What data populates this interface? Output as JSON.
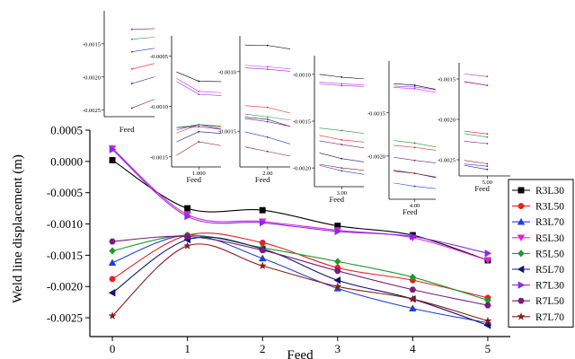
{
  "chart_data": {
    "type": "line",
    "xlabel": "Feed",
    "ylabel": "Weld line displacement (m)",
    "x": [
      0,
      1,
      2,
      3,
      4,
      5
    ],
    "xlim": [
      -0.3,
      5.3
    ],
    "ylim": [
      -0.0028,
      0.0005
    ],
    "x_ticks": [
      "0",
      "1",
      "2",
      "3",
      "4",
      "5"
    ],
    "y_ticks": [
      "0.0005",
      "0.0000",
      "-0.0005",
      "-0.0010",
      "-0.0015",
      "-0.0020",
      "-0.0025"
    ],
    "legend_position": "right",
    "series": [
      {
        "name": "R3L30",
        "color": "#000000",
        "marker": "square",
        "values": [
          2e-05,
          -0.00075,
          -0.00078,
          -0.00103,
          -0.00118,
          -0.00158
        ]
      },
      {
        "name": "R3L50",
        "color": "#e8201e",
        "marker": "circle",
        "values": [
          -0.00188,
          -0.00118,
          -0.0013,
          -0.0017,
          -0.0019,
          -0.00218
        ]
      },
      {
        "name": "R3L70",
        "color": "#1f3fd8",
        "marker": "triangle",
        "values": [
          -0.00162,
          -0.00118,
          -0.00155,
          -0.00203,
          -0.00235,
          -0.00258
        ]
      },
      {
        "name": "R5L30",
        "color": "#e020e0",
        "marker": "triangle-down",
        "values": [
          0.00021,
          -0.00085,
          -0.00096,
          -0.0011,
          -0.00122,
          -0.00158
        ]
      },
      {
        "name": "R5L50",
        "color": "#1e9a2a",
        "marker": "diamond",
        "values": [
          -0.00143,
          -0.00118,
          -0.00138,
          -0.0016,
          -0.00185,
          -0.00222
        ]
      },
      {
        "name": "R5L70",
        "color": "#14146e",
        "marker": "triangle-left",
        "values": [
          -0.0021,
          -0.00125,
          -0.0014,
          -0.0019,
          -0.0022,
          -0.00262
        ]
      },
      {
        "name": "R7L30",
        "color": "#8a2be2",
        "marker": "triangle-right",
        "values": [
          0.00019,
          -0.00088,
          -0.00098,
          -0.00112,
          -0.0012,
          -0.00147
        ]
      },
      {
        "name": "R7L50",
        "color": "#7a1a7a",
        "marker": "hexagon",
        "values": [
          -0.00128,
          -0.0012,
          -0.00142,
          -0.00175,
          -0.00205,
          -0.0023
        ]
      },
      {
        "name": "R7L70",
        "color": "#8b1a1a",
        "marker": "star",
        "values": [
          -0.00247,
          -0.00135,
          -0.00167,
          -0.002,
          -0.0022,
          -0.00255
        ]
      }
    ],
    "insets": [
      {
        "feed": 0,
        "ylim": [
          -0.0026,
          -0.001
        ],
        "y_ticks": [
          "-0.0015",
          "-0.0020",
          "-0.0025"
        ],
        "x_tick": "",
        "xlabel": "Feed"
      },
      {
        "feed": 1,
        "ylim": [
          -0.0016,
          -0.0003
        ],
        "y_ticks": [
          "-0.0005",
          "-0.0010",
          "-0.0015"
        ],
        "x_tick": "1.000",
        "xlabel": "Feed"
      },
      {
        "feed": 2,
        "ylim": [
          -0.0018,
          -0.0007
        ],
        "y_ticks": [
          "-0.0010",
          "-0.0015"
        ],
        "x_tick": "2.00",
        "xlabel": "Feed"
      },
      {
        "feed": 3,
        "ylim": [
          -0.0022,
          -0.0008
        ],
        "y_ticks": [
          "-0.0010",
          "-0.0015",
          "-0.0020"
        ],
        "x_tick": "3.00",
        "xlabel": "Feed"
      },
      {
        "feed": 4,
        "ylim": [
          -0.0025,
          -0.0009
        ],
        "y_ticks": [
          "-0.0015",
          "-0.0020"
        ],
        "x_tick": "4.00",
        "xlabel": "Feed"
      },
      {
        "feed": 5,
        "ylim": [
          -0.0027,
          -0.0013
        ],
        "y_ticks": [
          "-0.0015",
          "-0.0020",
          "-0.0025"
        ],
        "x_tick": "5.00",
        "xlabel": "Feed"
      }
    ]
  }
}
